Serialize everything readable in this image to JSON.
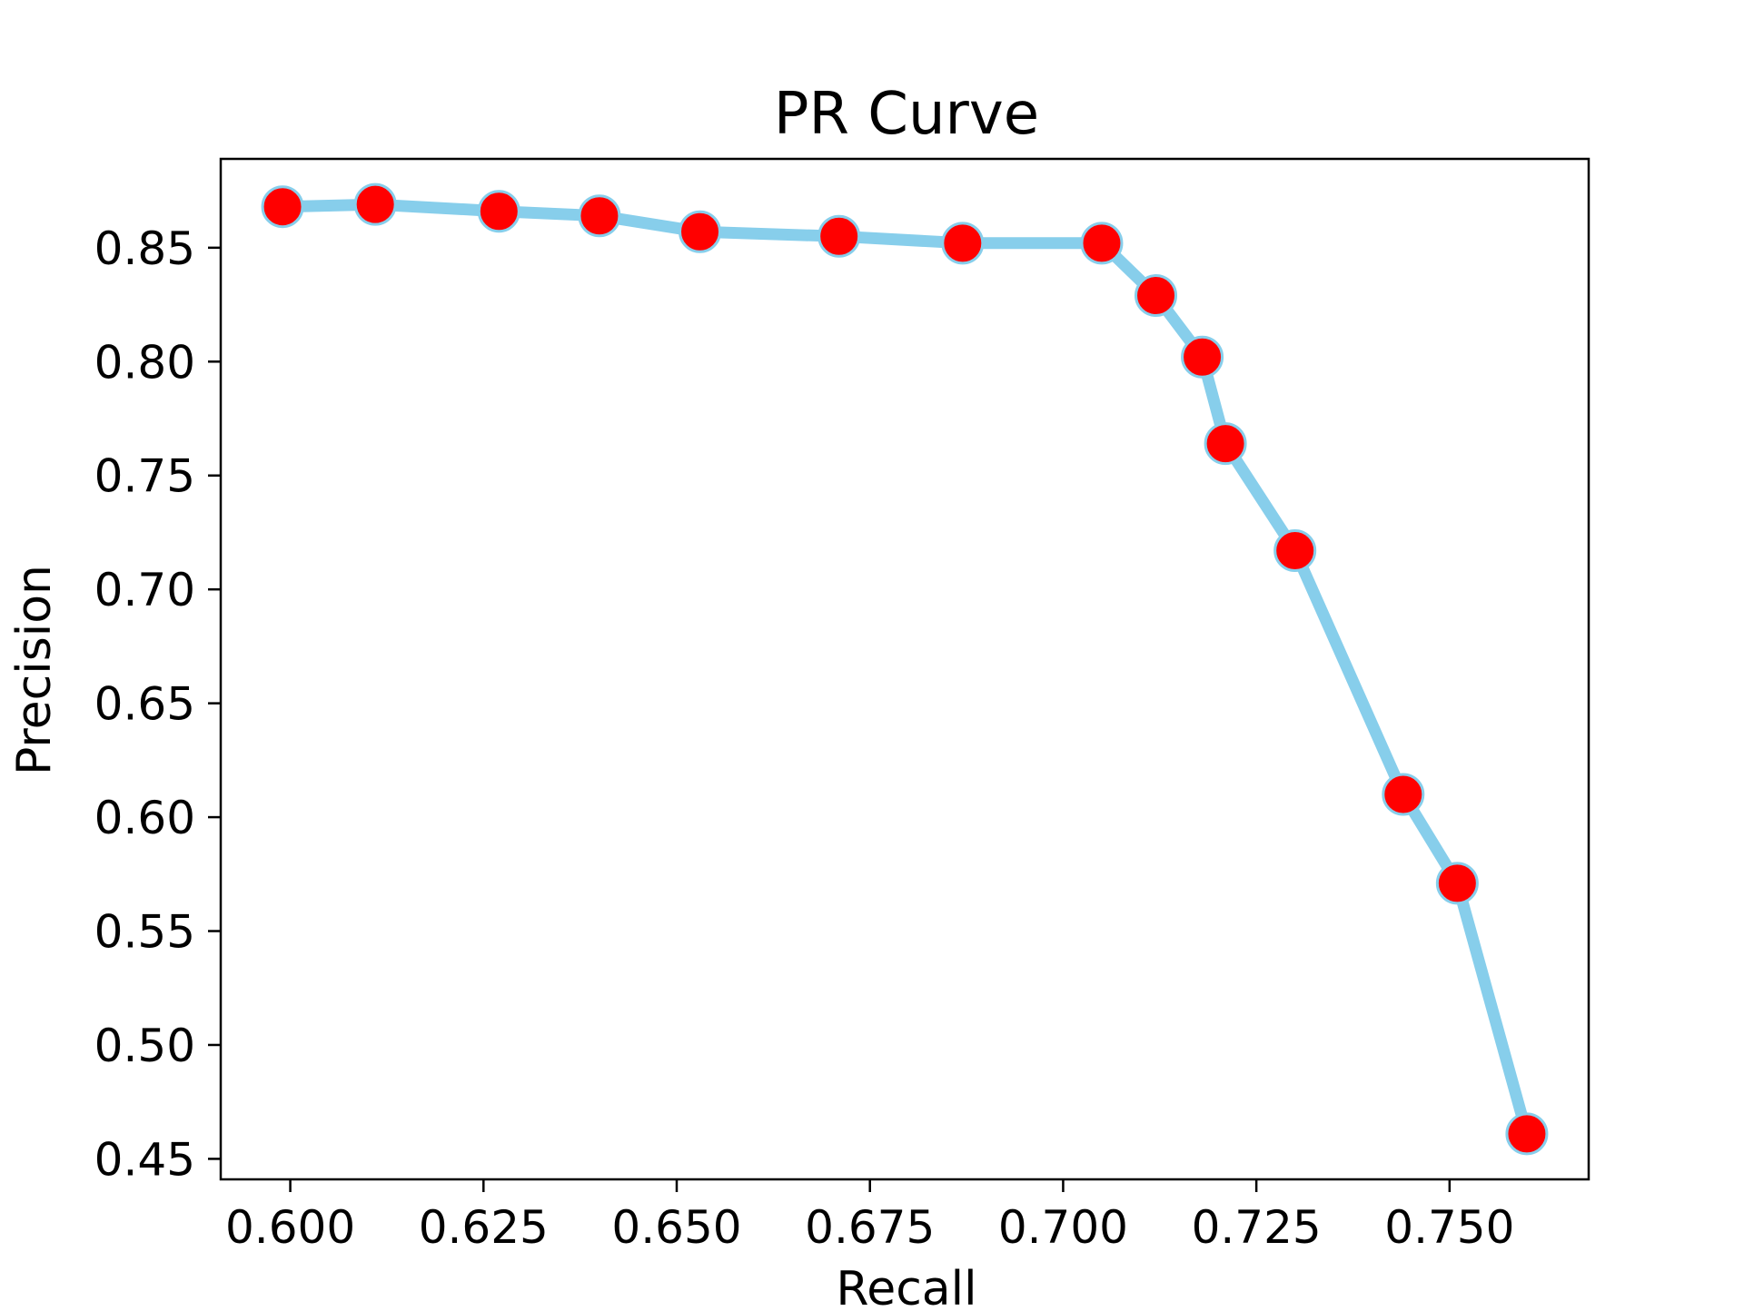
{
  "chart_data": {
    "type": "line",
    "title": "PR Curve",
    "xlabel": "Recall",
    "ylabel": "Precision",
    "xlim": [
      0.591,
      0.768
    ],
    "ylim": [
      0.441,
      0.889
    ],
    "x_ticks": [
      0.6,
      0.625,
      0.65,
      0.675,
      0.7,
      0.725,
      0.75
    ],
    "x_tick_labels": [
      "0.600",
      "0.625",
      "0.650",
      "0.675",
      "0.700",
      "0.725",
      "0.750"
    ],
    "y_ticks": [
      0.45,
      0.5,
      0.55,
      0.6,
      0.65,
      0.7,
      0.75,
      0.8,
      0.85
    ],
    "y_tick_labels": [
      "0.45",
      "0.50",
      "0.55",
      "0.60",
      "0.65",
      "0.70",
      "0.75",
      "0.80",
      "0.85"
    ],
    "grid": false,
    "legend": "none",
    "line_color": "#87ceeb",
    "marker_color": "#ff0000",
    "series": [
      {
        "x": [
          0.599,
          0.611,
          0.627,
          0.64,
          0.653,
          0.671,
          0.687,
          0.705,
          0.712,
          0.718,
          0.721,
          0.73,
          0.744,
          0.751,
          0.76
        ],
        "y": [
          0.868,
          0.869,
          0.866,
          0.864,
          0.857,
          0.855,
          0.852,
          0.852,
          0.829,
          0.802,
          0.764,
          0.717,
          0.61,
          0.571,
          0.461
        ]
      }
    ]
  }
}
